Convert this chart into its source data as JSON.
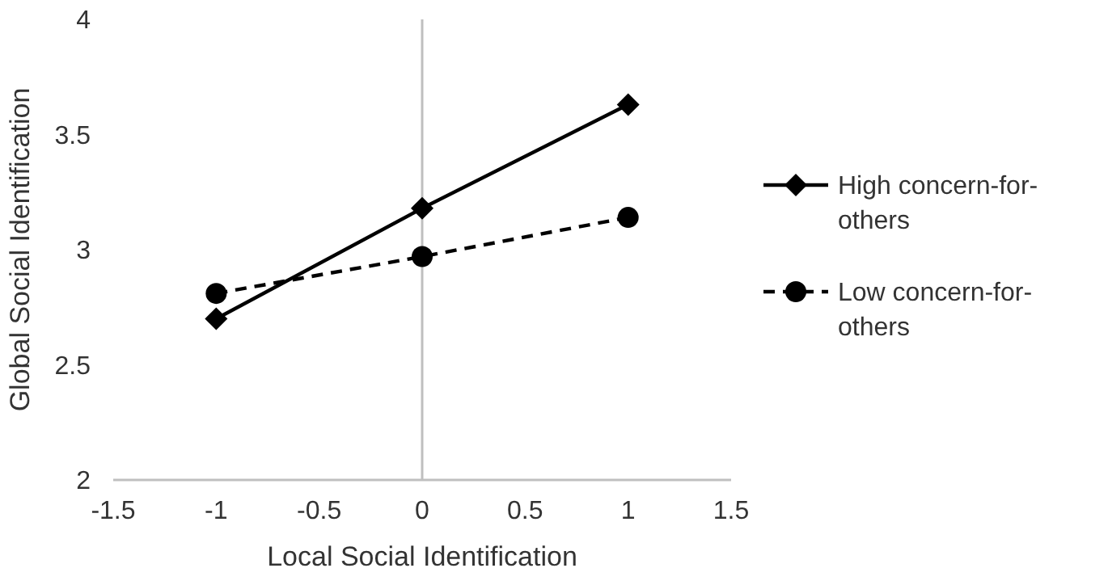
{
  "chart_data": {
    "type": "line",
    "xlabel": "Local Social Identification",
    "ylabel": "Global Social Identification",
    "x": [
      -1,
      0,
      1
    ],
    "series": [
      {
        "name": "High concern-for-others",
        "color": "#000000",
        "values": [
          2.7,
          3.18,
          3.63
        ],
        "marker": "diamond",
        "line_style": "solid"
      },
      {
        "name": "Low concern-for-others",
        "color": "#000000",
        "values": [
          2.81,
          2.97,
          3.14
        ],
        "marker": "circle",
        "line_style": "dashed"
      }
    ],
    "xlim": [
      -1.5,
      1.5
    ],
    "xticks": [
      -1.5,
      -1,
      -0.5,
      0,
      0.5,
      1,
      1.5
    ],
    "ylim": [
      2,
      4
    ],
    "yticks": [
      2,
      2.5,
      3,
      3.5,
      4
    ],
    "grid": false,
    "legend": "right",
    "ref_lines": [
      {
        "axis": "x",
        "value": 0,
        "color": "#bfbfbf"
      }
    ]
  }
}
